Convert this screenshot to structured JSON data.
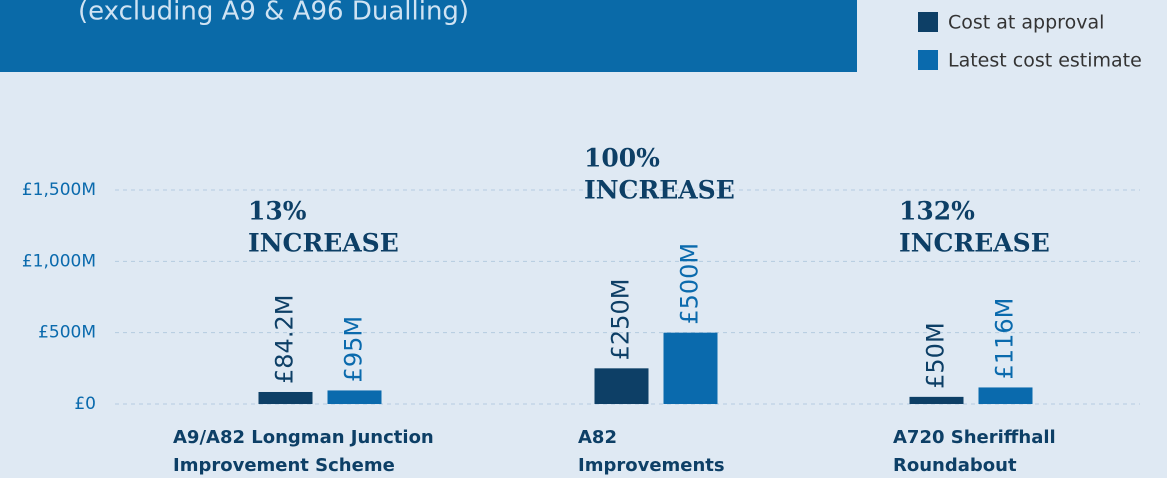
{
  "chart_data": {
    "type": "bar",
    "subtitle": "(excluding A9 & A96 Dualling)",
    "categories": [
      [
        "A9/A82 Longman Junction",
        "Improvement Scheme"
      ],
      [
        "A82",
        "Improvements"
      ],
      [
        "A720 Sheriffhall",
        "Roundabout"
      ]
    ],
    "series": [
      {
        "name": "Cost at approval",
        "color": "#0d3f66",
        "values": [
          84.2,
          250,
          50
        ],
        "value_labels": [
          "£84.2M",
          "£250M",
          "£50M"
        ]
      },
      {
        "name": "Latest cost estimate",
        "color": "#0a6aad",
        "values": [
          95,
          500,
          116
        ],
        "value_labels": [
          "£95M",
          "£500M",
          "£116M"
        ]
      }
    ],
    "annotations": [
      [
        "13%",
        "INCREASE"
      ],
      [
        "100%",
        "INCREASE"
      ],
      [
        "132%",
        "INCREASE"
      ]
    ],
    "ylim": [
      0,
      1500
    ],
    "yticks": [
      {
        "value": 0,
        "label": "£0"
      },
      {
        "value": 500,
        "label": "£500M"
      },
      {
        "value": 1000,
        "label": "£1,000M"
      },
      {
        "value": 1500,
        "label": "£1,500M"
      }
    ],
    "grid": true,
    "legend": "top-right"
  }
}
